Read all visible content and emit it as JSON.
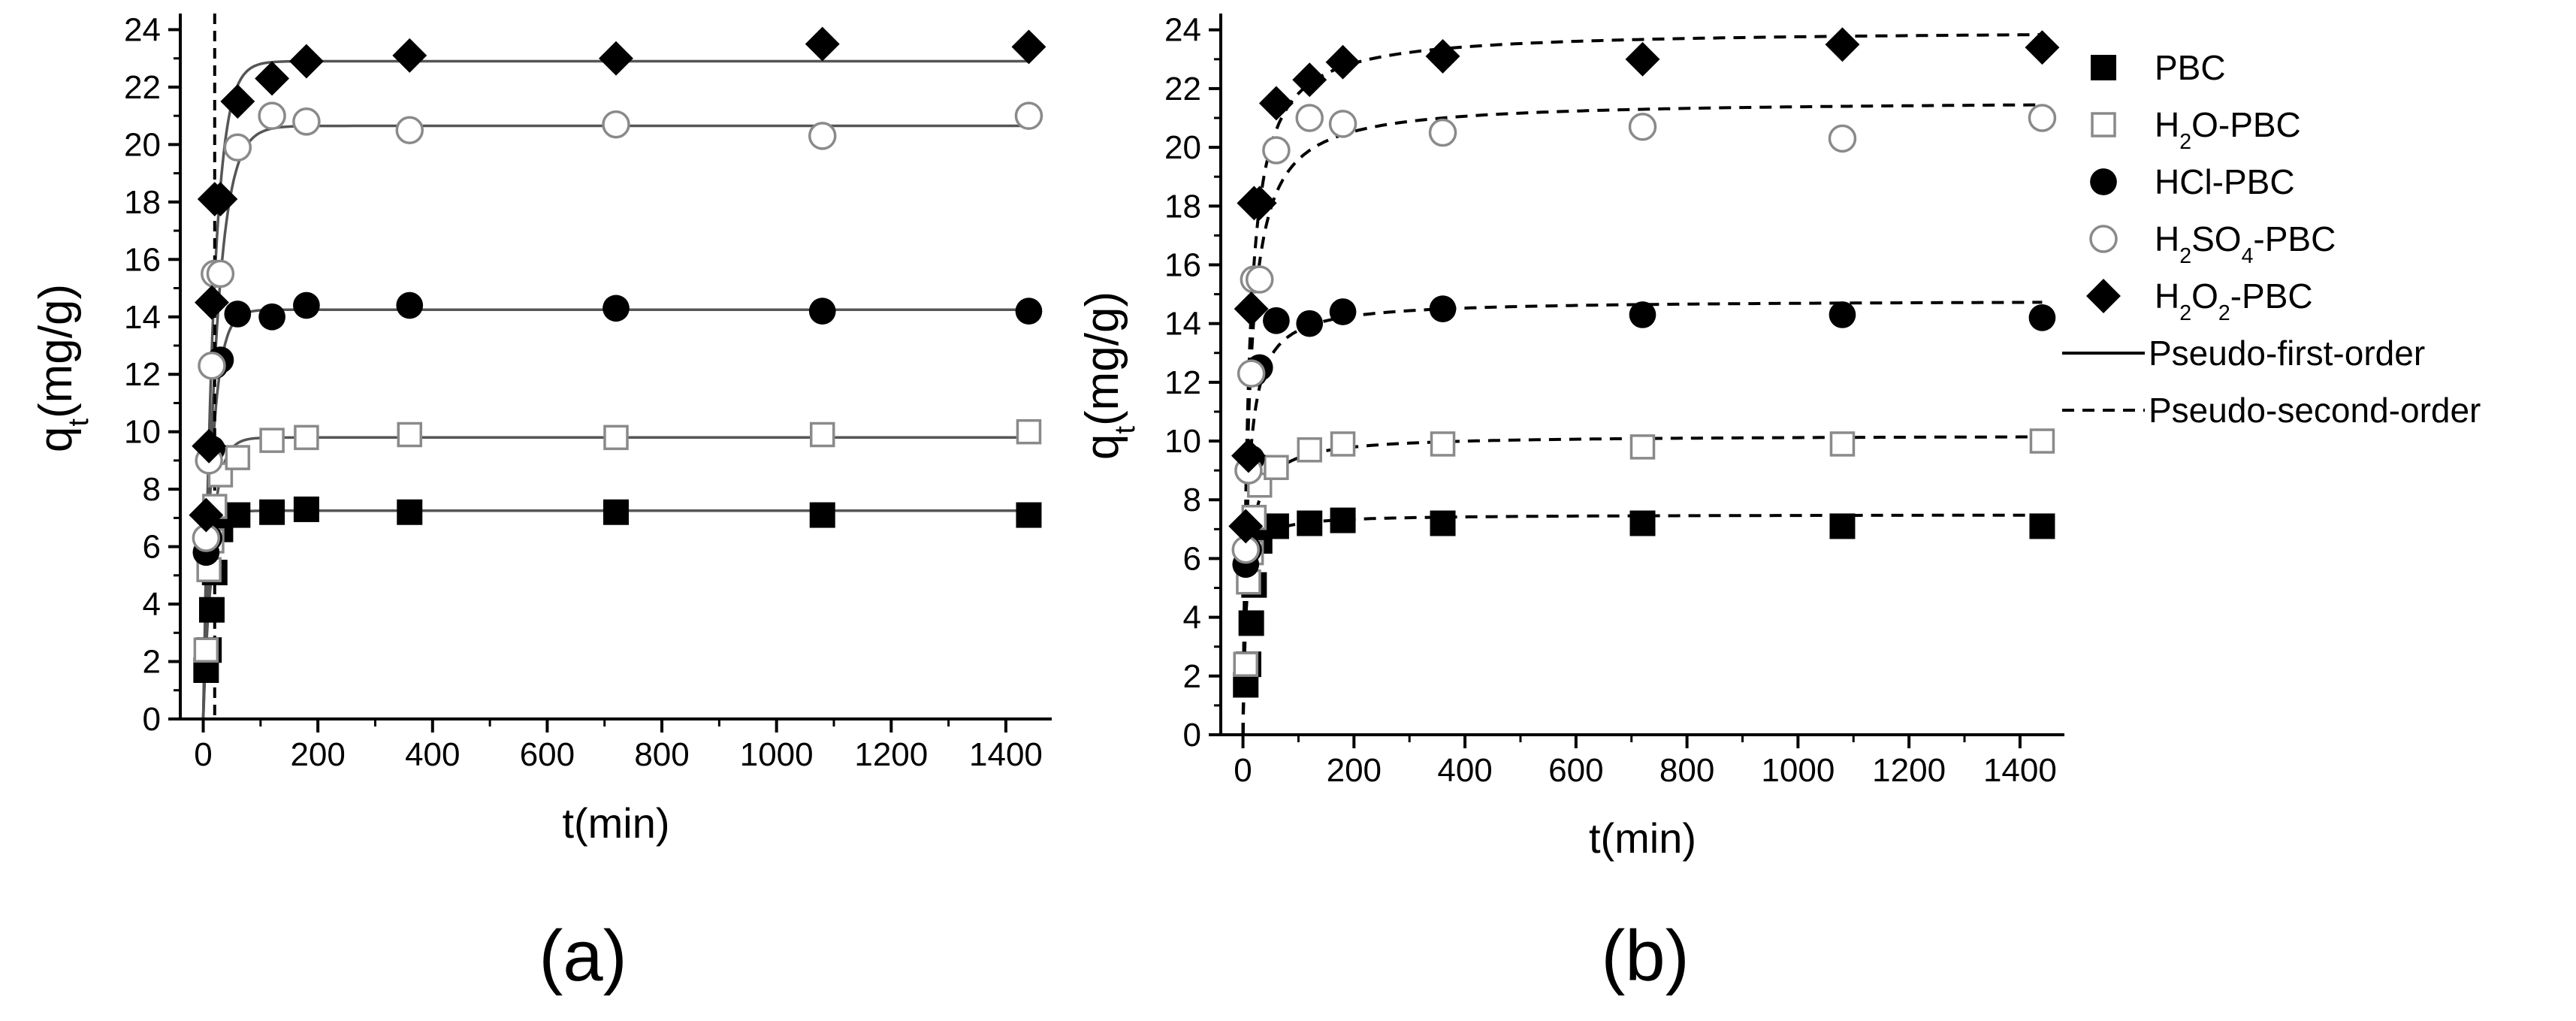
{
  "colors": {
    "axis": "#000000",
    "black_marker": "#000000",
    "gray_marker": "#8a8a8a",
    "first_order_line": "#555555",
    "second_order_line": "#000000",
    "background": "#ffffff"
  },
  "legend": {
    "items": [
      {
        "key": "PBC",
        "marker": "filled-square",
        "label_parts": [
          {
            "t": "PBC"
          }
        ]
      },
      {
        "key": "H2O-PBC",
        "marker": "open-square",
        "label_parts": [
          {
            "t": "H"
          },
          {
            "t": "2",
            "sub": true
          },
          {
            "t": "O-PBC"
          }
        ]
      },
      {
        "key": "HCl-PBC",
        "marker": "filled-circle",
        "label_parts": [
          {
            "t": "HCl-PBC"
          }
        ]
      },
      {
        "key": "H2SO4-PBC",
        "marker": "open-circle",
        "label_parts": [
          {
            "t": "H"
          },
          {
            "t": "2",
            "sub": true
          },
          {
            "t": "SO"
          },
          {
            "t": "4",
            "sub": true
          },
          {
            "t": "-PBC"
          }
        ]
      },
      {
        "key": "H2O2-PBC",
        "marker": "filled-diamond",
        "label_parts": [
          {
            "t": "H"
          },
          {
            "t": "2",
            "sub": true
          },
          {
            "t": "O"
          },
          {
            "t": "2",
            "sub": true
          },
          {
            "t": "-PBC"
          }
        ]
      }
    ],
    "lines": [
      {
        "key": "first",
        "style": "solid",
        "label": "Pseudo-first-order"
      },
      {
        "key": "second",
        "style": "dashed",
        "label": "Pseudo-second-order"
      }
    ]
  },
  "chart_data": [
    {
      "panel": "(a)",
      "type": "scatter",
      "xlabel": "t(min)",
      "ylabel_parts": [
        {
          "t": "q"
        },
        {
          "t": "t",
          "sub": true
        },
        {
          "t": "(mg/g)"
        }
      ],
      "xlim": [
        -40,
        1480
      ],
      "ylim": [
        0,
        24.3
      ],
      "xticks": [
        0,
        200,
        400,
        600,
        800,
        1000,
        1200,
        1400
      ],
      "yticks": [
        0,
        2,
        4,
        6,
        8,
        10,
        12,
        14,
        16,
        18,
        20,
        22,
        24
      ],
      "vline_x": 20,
      "fit_model": "pseudo-first-order",
      "fit_style": "solid",
      "x": [
        5,
        10,
        15,
        20,
        30,
        60,
        120,
        180,
        360,
        720,
        1080,
        1440
      ],
      "series": [
        {
          "name": "PBC",
          "marker": "filled-square",
          "values": [
            1.7,
            2.4,
            3.8,
            5.1,
            6.6,
            7.1,
            7.2,
            7.3,
            7.2,
            7.2,
            7.1,
            7.1
          ],
          "fit": {
            "qe": 7.25,
            "k": 0.08
          }
        },
        {
          "name": "H2O-PBC",
          "marker": "open-square",
          "values": [
            2.4,
            5.2,
            6.2,
            7.4,
            8.5,
            9.1,
            9.7,
            9.8,
            9.9,
            9.8,
            9.9,
            10.0
          ],
          "fit": {
            "qe": 9.8,
            "k": 0.065
          }
        },
        {
          "name": "HCl-PBC",
          "marker": "filled-circle",
          "values": [
            5.8,
            6.3,
            9.4,
            12.3,
            12.5,
            14.1,
            14.0,
            14.4,
            14.4,
            14.3,
            14.2,
            14.2
          ],
          "fit": {
            "qe": 14.25,
            "k": 0.065
          }
        },
        {
          "name": "H2SO4-PBC",
          "marker": "open-circle",
          "values": [
            6.3,
            9.0,
            12.3,
            15.5,
            15.5,
            19.9,
            21.0,
            20.8,
            20.5,
            20.7,
            20.3,
            21.0
          ],
          "fit": {
            "qe": 20.65,
            "k": 0.045
          }
        },
        {
          "name": "H2O2-PBC",
          "marker": "filled-diamond",
          "values": [
            7.1,
            9.5,
            14.5,
            18.1,
            18.1,
            21.5,
            22.3,
            22.9,
            23.1,
            23.0,
            23.5,
            23.4
          ],
          "fit": {
            "qe": 22.9,
            "k": 0.055
          }
        }
      ]
    },
    {
      "panel": "(b)",
      "type": "scatter",
      "xlabel": "t(min)",
      "ylabel_parts": [
        {
          "t": "q"
        },
        {
          "t": "t",
          "sub": true
        },
        {
          "t": "(mg/g)"
        }
      ],
      "xlim": [
        -40,
        1480
      ],
      "ylim": [
        0,
        24.3
      ],
      "xticks": [
        0,
        200,
        400,
        600,
        800,
        1000,
        1200,
        1400
      ],
      "yticks": [
        0,
        2,
        4,
        6,
        8,
        10,
        12,
        14,
        16,
        18,
        20,
        22,
        24
      ],
      "fit_model": "pseudo-second-order",
      "fit_style": "dashed",
      "x": [
        5,
        10,
        15,
        20,
        30,
        60,
        120,
        180,
        360,
        720,
        1080,
        1440
      ],
      "series": [
        {
          "name": "PBC",
          "marker": "filled-square",
          "values": [
            1.7,
            2.4,
            3.8,
            5.1,
            6.6,
            7.1,
            7.2,
            7.3,
            7.2,
            7.2,
            7.1,
            7.1
          ],
          "fit": {
            "qe": 7.5,
            "k": 0.03
          }
        },
        {
          "name": "H2O-PBC",
          "marker": "open-square",
          "values": [
            2.4,
            5.2,
            6.2,
            7.4,
            8.5,
            9.1,
            9.7,
            9.9,
            9.9,
            9.8,
            9.9,
            10.0
          ],
          "fit": {
            "qe": 10.2,
            "k": 0.012
          }
        },
        {
          "name": "HCl-PBC",
          "marker": "filled-circle",
          "values": [
            5.8,
            6.3,
            9.4,
            12.3,
            12.5,
            14.1,
            14.0,
            14.4,
            14.5,
            14.3,
            14.3,
            14.2
          ],
          "fit": {
            "qe": 14.8,
            "k": 0.009
          }
        },
        {
          "name": "H2SO4-PBC",
          "marker": "open-circle",
          "values": [
            6.3,
            9.0,
            12.3,
            15.5,
            15.5,
            19.9,
            21.0,
            20.8,
            20.5,
            20.7,
            20.3,
            21.0
          ],
          "fit": {
            "qe": 21.6,
            "k": 0.0045
          }
        },
        {
          "name": "H2O2-PBC",
          "marker": "filled-diamond",
          "values": [
            7.1,
            9.5,
            14.5,
            18.1,
            18.1,
            21.5,
            22.3,
            22.9,
            23.1,
            23.0,
            23.5,
            23.4
          ],
          "fit": {
            "qe": 24.0,
            "k": 0.0042
          }
        }
      ]
    }
  ]
}
